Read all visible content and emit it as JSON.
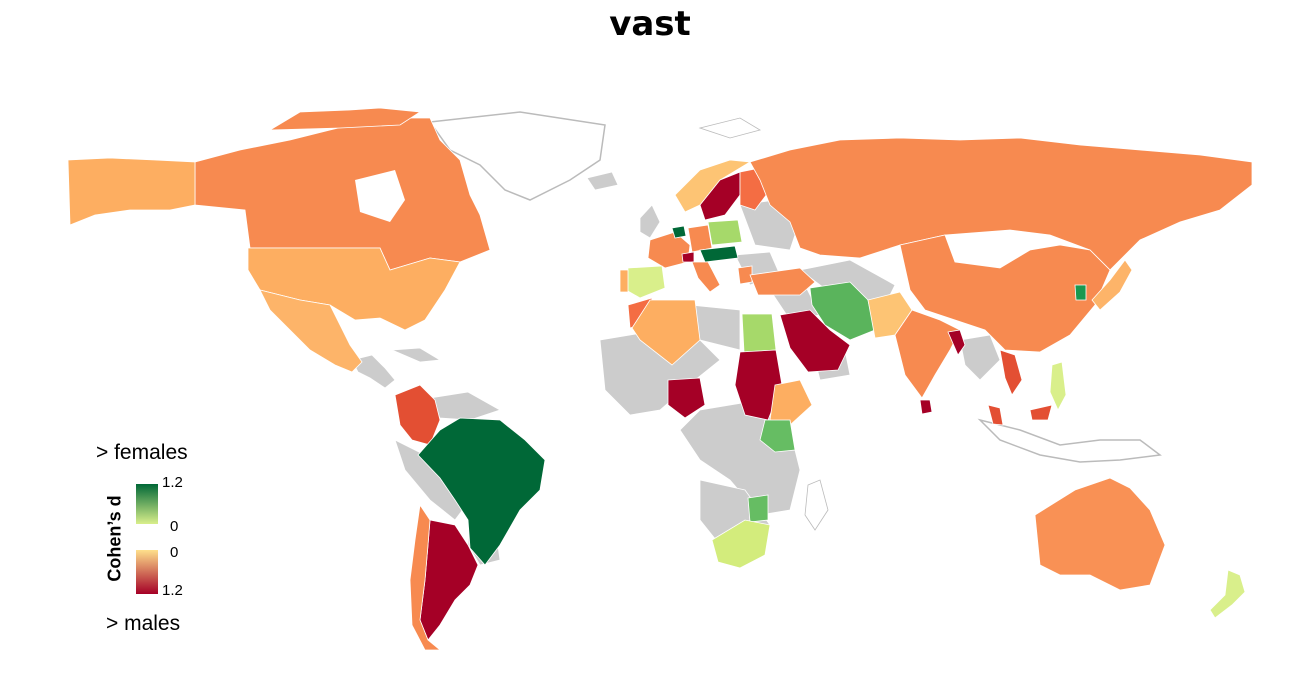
{
  "title": "vast",
  "legend": {
    "top_caption": "> females",
    "bottom_caption": "> males",
    "axis_title": "Cohen’s d",
    "females_ticks": [
      "1.2",
      "0"
    ],
    "males_ticks": [
      "0",
      "1.2"
    ],
    "females_scale": [
      "#006837",
      "#d9ef8b"
    ],
    "males_scale": [
      "#fee08b",
      "#a50026"
    ]
  },
  "colors": {
    "no_data": "#cccccc",
    "border": "#ffffff",
    "outline": "#bbbbbb"
  },
  "countries": [
    {
      "name": "Canada",
      "fill": "#f78a50",
      "level": "males-moderate"
    },
    {
      "name": "Alaska",
      "fill": "#fdae61",
      "level": "males-low"
    },
    {
      "name": "United States",
      "fill": "#fdae61",
      "level": "males-low"
    },
    {
      "name": "Mexico",
      "fill": "#fdb469",
      "level": "males-low"
    },
    {
      "name": "Colombia",
      "fill": "#e34f33",
      "level": "males-high"
    },
    {
      "name": "Brazil",
      "fill": "#006837",
      "level": "females-high"
    },
    {
      "name": "Argentina",
      "fill": "#a50026",
      "level": "males-high"
    },
    {
      "name": "Chile",
      "fill": "#f78a50",
      "level": "males-moderate"
    },
    {
      "name": "Russia",
      "fill": "#f78a50",
      "level": "males-moderate"
    },
    {
      "name": "China",
      "fill": "#f78a50",
      "level": "males-moderate"
    },
    {
      "name": "India",
      "fill": "#f78a50",
      "level": "males-moderate"
    },
    {
      "name": "Australia",
      "fill": "#f99155",
      "level": "males-moderate"
    },
    {
      "name": "New Zealand",
      "fill": "#d9ef8b",
      "level": "females-low"
    },
    {
      "name": "Saudi Arabia",
      "fill": "#a50026",
      "level": "males-high"
    },
    {
      "name": "Iran",
      "fill": "#5ab45c",
      "level": "females-moderate"
    },
    {
      "name": "Egypt",
      "fill": "#a6d96a",
      "level": "females-low"
    },
    {
      "name": "Sudan",
      "fill": "#a50026",
      "level": "males-high"
    },
    {
      "name": "Nigeria",
      "fill": "#a50026",
      "level": "males-high"
    },
    {
      "name": "Algeria",
      "fill": "#fdae61",
      "level": "males-low"
    },
    {
      "name": "Ethiopia",
      "fill": "#fdae61",
      "level": "males-low"
    },
    {
      "name": "Kenya",
      "fill": "#66bd63",
      "level": "females-moderate"
    },
    {
      "name": "South Africa",
      "fill": "#d3ec7c",
      "level": "females-low"
    },
    {
      "name": "Sweden",
      "fill": "#a50026",
      "level": "males-high"
    },
    {
      "name": "Norway",
      "fill": "#fdc474",
      "level": "males-low"
    },
    {
      "name": "Finland",
      "fill": "#f46d43",
      "level": "males-moderate"
    },
    {
      "name": "Spain",
      "fill": "#d9ef8b",
      "level": "females-low"
    },
    {
      "name": "France",
      "fill": "#f78a50",
      "level": "males-moderate"
    },
    {
      "name": "Poland",
      "fill": "#a6d96a",
      "level": "females-low"
    },
    {
      "name": "Turkey",
      "fill": "#f78a50",
      "level": "males-moderate"
    },
    {
      "name": "Pakistan",
      "fill": "#fdc474",
      "level": "males-low"
    },
    {
      "name": "Japan",
      "fill": "#fdb469",
      "level": "males-low"
    },
    {
      "name": "South Korea",
      "fill": "#1a9850",
      "level": "females-high"
    },
    {
      "name": "Philippines",
      "fill": "#d9ef8b",
      "level": "females-low"
    },
    {
      "name": "Malaysia",
      "fill": "#e34f33",
      "level": "males-high"
    },
    {
      "name": "Sri Lanka",
      "fill": "#a50026",
      "level": "males-high"
    },
    {
      "name": "Bangladesh",
      "fill": "#a50026",
      "level": "males-high"
    },
    {
      "name": "Vietnam",
      "fill": "#e34f33",
      "level": "males-high"
    },
    {
      "name": "Mozambique",
      "fill": "#66bd63",
      "level": "females-moderate"
    }
  ]
}
